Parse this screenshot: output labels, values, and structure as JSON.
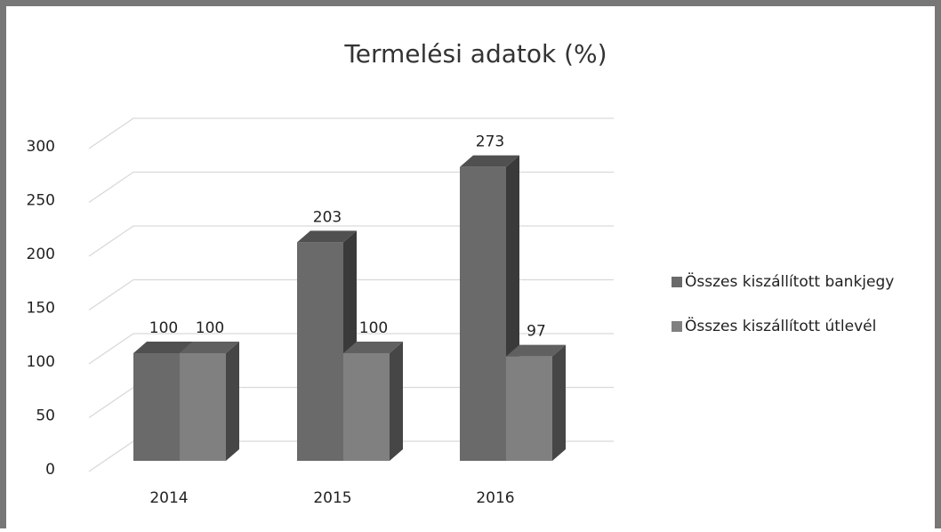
{
  "chart_data": {
    "type": "bar3d",
    "title": "Termelési adatok (%)",
    "categories": [
      "2014",
      "2015",
      "2016"
    ],
    "series": [
      {
        "name": "Összes kiszállított bankjegy",
        "color": "#6a6a6a",
        "values": [
          100,
          203,
          273
        ]
      },
      {
        "name": "Összes kiszállított útlevél",
        "color": "#808080",
        "values": [
          100,
          100,
          97
        ]
      }
    ],
    "ylim": [
      0,
      300
    ],
    "yticks": [
      0,
      50,
      100,
      150,
      200,
      250,
      300
    ],
    "grid": true,
    "legend": "right"
  }
}
